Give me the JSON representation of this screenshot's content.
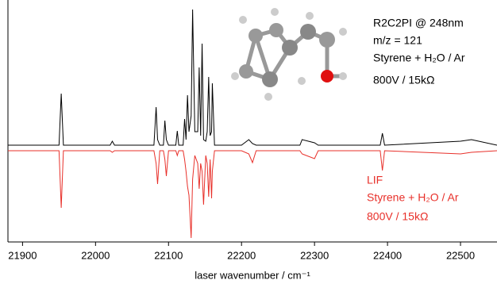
{
  "chart_data": {
    "type": "line",
    "annotations": [
      "R2C2PI @ 248nm",
      "m/z = 121",
      "Styrene + H₂O / Ar",
      "800V / 15kΩ",
      "LIF",
      "Styrene + H₂O / Ar",
      "800V / 15kΩ"
    ],
    "xlabel": "laser wavenumber / cm⁻¹",
    "xlim": [
      21880,
      22550
    ],
    "xticks": [
      21900,
      22000,
      22100,
      22200,
      22300,
      22400,
      22500
    ],
    "ylim": [
      -119,
      181
    ],
    "x": [
      21880,
      21950,
      21953,
      21956,
      22020,
      22023,
      22026,
      22080,
      22083,
      22085,
      22088,
      22093,
      22095,
      22097,
      22100,
      22110,
      22112,
      22114,
      22120,
      22122,
      22124,
      22126,
      22128,
      22131,
      22133,
      22136,
      22140,
      22142,
      22144,
      22146,
      22148,
      22151,
      22153,
      22155,
      22157,
      22159,
      22160,
      22163,
      22200,
      22210,
      22215,
      22220,
      22280,
      22283,
      22300,
      22305,
      22390,
      22393,
      22396,
      22500,
      22515,
      22550
    ],
    "series": [
      {
        "color": "#000000",
        "values": [
          3,
          3,
          68,
          3,
          3,
          8,
          3,
          3,
          51,
          10,
          3,
          3,
          34,
          10,
          3,
          3,
          21,
          3,
          3,
          36,
          10,
          66,
          20,
          40,
          174,
          20,
          20,
          101,
          15,
          131,
          10,
          8,
          20,
          89,
          15,
          20,
          81,
          3,
          3,
          10,
          5,
          3,
          3,
          10,
          6,
          3,
          3,
          18,
          3,
          8,
          10,
          3
        ]
      },
      {
        "color": "#e8302a",
        "values": [
          -4,
          -4,
          -76,
          -4,
          -4,
          -6,
          -4,
          -4,
          -20,
          -46,
          -4,
          -4,
          -15,
          -36,
          -4,
          -4,
          -10,
          -4,
          -4,
          -15,
          -30,
          -49,
          -60,
          -114,
          -40,
          -10,
          -20,
          -52,
          -20,
          -30,
          -72,
          -10,
          -20,
          -62,
          -15,
          -64,
          -30,
          -4,
          -4,
          -8,
          -19,
          -4,
          -4,
          -8,
          -14,
          -4,
          -4,
          -29,
          -4,
          -8,
          -6,
          -4
        ]
      }
    ]
  }
}
